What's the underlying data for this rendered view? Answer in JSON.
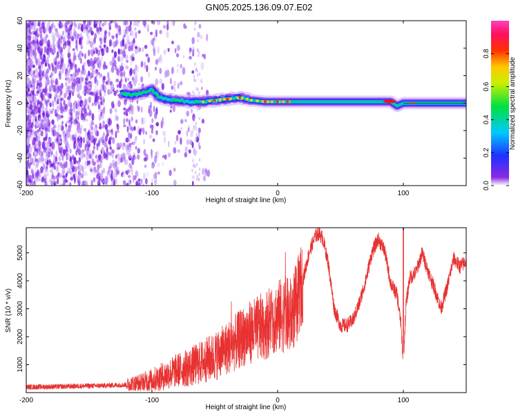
{
  "figure_title": "GN05.2025.136.09.07.E02",
  "colors": {
    "snr_line": "#e83232",
    "spectrogram_low": "#8a2be2",
    "spectrogram_high": "#ff0000"
  },
  "chart_data": [
    {
      "type": "heatmap",
      "title": "GN05.2025.136.09.07.E02",
      "xlabel": "Height of straight line (km)",
      "ylabel": "Frequency (Hz)",
      "xlim": [
        -200,
        150
      ],
      "ylim": [
        -60,
        60
      ],
      "xticks": [
        -200,
        -100,
        0,
        100
      ],
      "yticks": [
        -60,
        -40,
        -20,
        0,
        20,
        40,
        60
      ],
      "colorbar": {
        "label": "Normalized spectral amplitude",
        "range": [
          0.0,
          1.0
        ],
        "ticks": [
          "0.0",
          "0.2",
          "0.4",
          "0.6",
          "0.8"
        ],
        "colormap": "rainbow"
      },
      "ridge": {
        "description_points_x": [
          -125,
          -115,
          -105,
          -100,
          -95,
          -90,
          -80,
          -70,
          -60,
          -50,
          -40,
          -30,
          -20,
          -10,
          0,
          10,
          20,
          40,
          60,
          80,
          90,
          95,
          100,
          120,
          150
        ],
        "description_points_y": [
          7,
          6,
          8,
          10,
          5,
          3,
          2,
          1,
          1,
          2,
          3,
          4,
          2,
          1,
          1,
          1,
          1,
          1,
          1,
          1,
          1,
          -2,
          0,
          0,
          0
        ]
      },
      "grid": false
    },
    {
      "type": "line",
      "title": "",
      "xlabel": "Height of straight line (km)",
      "ylabel": "SNR (10 * v/v)",
      "xlim": [
        -200,
        150
      ],
      "ylim": [
        0,
        5900
      ],
      "xticks": [
        -200,
        -100,
        0,
        100
      ],
      "yticks": [
        1000,
        2000,
        3000,
        4000,
        5000
      ],
      "series": [
        {
          "color": "#e83232",
          "x": [
            -200,
            -180,
            -160,
            -140,
            -120,
            -110,
            -100,
            -90,
            -80,
            -70,
            -60,
            -50,
            -40,
            -30,
            -25,
            -20,
            -15,
            -10,
            -5,
            0,
            5,
            10,
            15,
            20,
            25,
            30,
            33,
            36,
            40,
            45,
            50,
            55,
            60,
            65,
            70,
            75,
            80,
            85,
            90,
            95,
            98,
            100,
            102,
            105,
            110,
            115,
            120,
            125,
            130,
            135,
            140,
            145,
            150
          ],
          "y": [
            200,
            210,
            230,
            250,
            280,
            330,
            450,
            600,
            800,
            900,
            1100,
            1300,
            1600,
            1900,
            2100,
            2200,
            2300,
            2400,
            2600,
            2700,
            2800,
            2700,
            3200,
            4000,
            5000,
            5600,
            5700,
            5500,
            4700,
            3000,
            2400,
            2400,
            2600,
            3200,
            4000,
            5000,
            5500,
            5100,
            3900,
            3500,
            2500,
            1000,
            3100,
            4100,
            4300,
            5000,
            4300,
            3700,
            3000,
            3800,
            4800,
            4500,
            4700
          ]
        }
      ],
      "grid": false
    }
  ]
}
